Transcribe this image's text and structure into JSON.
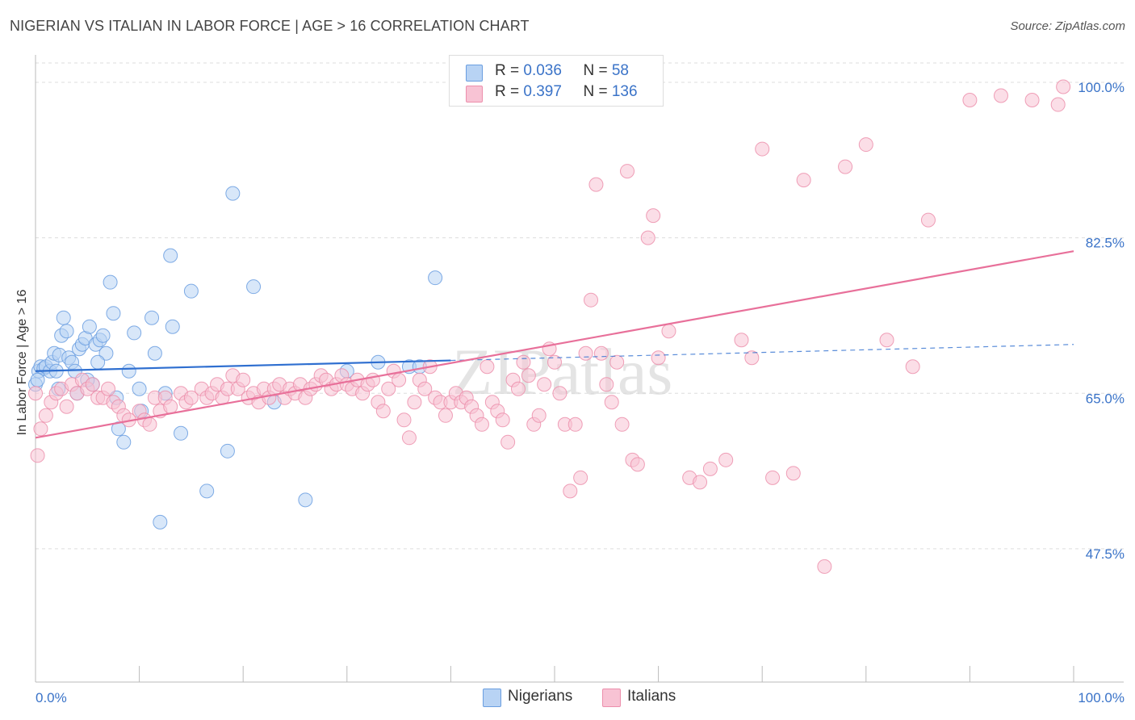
{
  "title": "NIGERIAN VS ITALIAN IN LABOR FORCE | AGE > 16 CORRELATION CHART",
  "source": "Source: ZipAtlas.com",
  "watermark": "ZIPatlas",
  "colors": {
    "nigerian_fill": "#b8d3f4",
    "nigerian_stroke": "#6a9ee0",
    "nigerian_line": "#2f6fd0",
    "italian_fill": "#f8c3d4",
    "italian_stroke": "#ec8fac",
    "italian_line": "#e8709a",
    "axis_text": "#3a73c8",
    "grid": "#dddddd"
  },
  "stats": {
    "nigerians": {
      "r_label": "R = ",
      "r_value": "0.036",
      "n_label": "N = ",
      "n_value": "58"
    },
    "italians": {
      "r_label": "R = ",
      "r_value": "0.397",
      "n_label": "N = ",
      "n_value": "136"
    }
  },
  "legend": {
    "nigerians": "Nigerians",
    "italians": "Italians"
  },
  "chart_data": {
    "type": "scatter",
    "title": "NIGERIAN VS ITALIAN IN LABOR FORCE | AGE > 16 CORRELATION CHART",
    "xlabel": "",
    "ylabel": "In Labor Force | Age > 16",
    "xlim": [
      0,
      100
    ],
    "ylim": [
      32.5,
      102
    ],
    "x_tick_labels": [
      "0.0%",
      "100.0%"
    ],
    "y_ticks": [
      {
        "value": 100.0,
        "label": "100.0%"
      },
      {
        "value": 82.5,
        "label": "82.5%"
      },
      {
        "value": 65.0,
        "label": "65.0%"
      },
      {
        "value": 47.5,
        "label": "47.5%"
      }
    ],
    "series": [
      {
        "name": "Nigerians",
        "trend": {
          "x": [
            0,
            40
          ],
          "y": [
            67.5,
            68.7
          ],
          "dashed_extension_to": [
            100,
            70.5
          ]
        },
        "points": [
          [
            0.0,
            66.0
          ],
          [
            0.3,
            67.5
          ],
          [
            0.5,
            68.0
          ],
          [
            0.8,
            67.8
          ],
          [
            1.0,
            68.0
          ],
          [
            1.4,
            67.5
          ],
          [
            1.6,
            68.5
          ],
          [
            1.8,
            69.5
          ],
          [
            2.0,
            67.5
          ],
          [
            2.3,
            69.3
          ],
          [
            2.5,
            71.5
          ],
          [
            2.7,
            73.5
          ],
          [
            3.0,
            72.0
          ],
          [
            3.2,
            69.0
          ],
          [
            3.5,
            68.5
          ],
          [
            3.8,
            67.5
          ],
          [
            4.2,
            70.0
          ],
          [
            4.5,
            70.5
          ],
          [
            4.8,
            71.2
          ],
          [
            5.2,
            72.5
          ],
          [
            5.5,
            66.0
          ],
          [
            5.8,
            70.5
          ],
          [
            6.2,
            71.0
          ],
          [
            6.5,
            71.5
          ],
          [
            6.8,
            69.5
          ],
          [
            7.2,
            77.5
          ],
          [
            7.5,
            74.0
          ],
          [
            7.8,
            64.5
          ],
          [
            8.0,
            61.0
          ],
          [
            8.5,
            59.5
          ],
          [
            9.5,
            71.8
          ],
          [
            10.0,
            65.5
          ],
          [
            10.2,
            63.0
          ],
          [
            11.2,
            73.5
          ],
          [
            11.5,
            69.5
          ],
          [
            12.0,
            50.5
          ],
          [
            12.5,
            65.0
          ],
          [
            13.0,
            80.5
          ],
          [
            13.2,
            72.5
          ],
          [
            14.0,
            60.5
          ],
          [
            15.0,
            76.5
          ],
          [
            16.5,
            54.0
          ],
          [
            18.5,
            58.5
          ],
          [
            19.0,
            87.5
          ],
          [
            21.0,
            77.0
          ],
          [
            23.0,
            64.0
          ],
          [
            26.0,
            53.0
          ],
          [
            30.0,
            67.5
          ],
          [
            33.0,
            68.5
          ],
          [
            36.0,
            68.0
          ],
          [
            37.0,
            68.0
          ],
          [
            38.5,
            78.0
          ],
          [
            0.2,
            66.5
          ],
          [
            2.2,
            65.5
          ],
          [
            4.0,
            65.0
          ],
          [
            5.0,
            66.5
          ],
          [
            6.0,
            68.5
          ],
          [
            9.0,
            67.5
          ]
        ]
      },
      {
        "name": "Italians",
        "trend": {
          "x": [
            0,
            100
          ],
          "y": [
            60.0,
            81.0
          ]
        },
        "points": [
          [
            0.0,
            65.0
          ],
          [
            0.2,
            58.0
          ],
          [
            0.5,
            61.0
          ],
          [
            1.0,
            62.5
          ],
          [
            1.5,
            64.0
          ],
          [
            2.0,
            65.0
          ],
          [
            2.5,
            65.5
          ],
          [
            3.0,
            63.5
          ],
          [
            3.5,
            66.0
          ],
          [
            4.0,
            65.0
          ],
          [
            4.5,
            66.5
          ],
          [
            5.0,
            65.5
          ],
          [
            5.5,
            66.0
          ],
          [
            6.0,
            64.5
          ],
          [
            6.5,
            64.5
          ],
          [
            7.0,
            65.5
          ],
          [
            7.5,
            64.0
          ],
          [
            8.0,
            63.5
          ],
          [
            8.5,
            62.5
          ],
          [
            9.0,
            62.0
          ],
          [
            10.0,
            63.0
          ],
          [
            10.5,
            62.0
          ],
          [
            11.0,
            61.5
          ],
          [
            11.5,
            64.5
          ],
          [
            12.0,
            63.0
          ],
          [
            12.5,
            64.5
          ],
          [
            13.0,
            63.5
          ],
          [
            14.0,
            65.0
          ],
          [
            14.5,
            64.0
          ],
          [
            15.0,
            64.5
          ],
          [
            16.0,
            65.5
          ],
          [
            16.5,
            64.5
          ],
          [
            17.0,
            65.0
          ],
          [
            17.5,
            66.0
          ],
          [
            18.0,
            64.5
          ],
          [
            18.5,
            65.5
          ],
          [
            19.0,
            67.0
          ],
          [
            19.5,
            65.5
          ],
          [
            20.0,
            66.5
          ],
          [
            20.5,
            64.5
          ],
          [
            21.0,
            65.0
          ],
          [
            21.5,
            64.0
          ],
          [
            22.0,
            65.5
          ],
          [
            22.5,
            64.5
          ],
          [
            23.0,
            65.5
          ],
          [
            23.5,
            66.0
          ],
          [
            24.0,
            64.5
          ],
          [
            24.5,
            65.5
          ],
          [
            25.0,
            65.0
          ],
          [
            25.5,
            66.0
          ],
          [
            26.0,
            64.5
          ],
          [
            26.5,
            65.5
          ],
          [
            27.0,
            66.0
          ],
          [
            27.5,
            67.0
          ],
          [
            28.0,
            66.5
          ],
          [
            28.5,
            65.5
          ],
          [
            29.0,
            66.0
          ],
          [
            29.5,
            67.0
          ],
          [
            30.0,
            66.0
          ],
          [
            30.5,
            65.5
          ],
          [
            31.0,
            66.5
          ],
          [
            31.5,
            65.0
          ],
          [
            32.0,
            66.0
          ],
          [
            32.5,
            66.5
          ],
          [
            33.0,
            64.0
          ],
          [
            33.5,
            63.0
          ],
          [
            34.0,
            65.5
          ],
          [
            34.5,
            67.5
          ],
          [
            35.0,
            66.5
          ],
          [
            35.5,
            62.0
          ],
          [
            36.0,
            60.0
          ],
          [
            36.5,
            64.0
          ],
          [
            37.0,
            66.5
          ],
          [
            37.5,
            65.5
          ],
          [
            38.0,
            68.0
          ],
          [
            38.5,
            64.5
          ],
          [
            39.0,
            64.0
          ],
          [
            39.5,
            62.5
          ],
          [
            40.0,
            64.0
          ],
          [
            40.5,
            65.0
          ],
          [
            41.0,
            64.0
          ],
          [
            41.5,
            64.5
          ],
          [
            42.0,
            63.5
          ],
          [
            42.5,
            62.5
          ],
          [
            43.0,
            61.5
          ],
          [
            43.5,
            68.0
          ],
          [
            44.0,
            64.0
          ],
          [
            44.5,
            63.0
          ],
          [
            45.0,
            62.0
          ],
          [
            45.5,
            59.5
          ],
          [
            46.0,
            66.5
          ],
          [
            46.5,
            65.5
          ],
          [
            47.0,
            68.5
          ],
          [
            47.5,
            67.0
          ],
          [
            48.0,
            61.5
          ],
          [
            48.5,
            62.5
          ],
          [
            49.0,
            66.0
          ],
          [
            49.5,
            70.0
          ],
          [
            50.0,
            68.5
          ],
          [
            50.5,
            65.0
          ],
          [
            51.0,
            61.5
          ],
          [
            51.5,
            54.0
          ],
          [
            52.0,
            61.5
          ],
          [
            52.5,
            55.5
          ],
          [
            53.0,
            69.5
          ],
          [
            53.5,
            75.5
          ],
          [
            54.0,
            88.5
          ],
          [
            54.5,
            69.5
          ],
          [
            55.0,
            66.0
          ],
          [
            55.5,
            64.0
          ],
          [
            56.0,
            68.5
          ],
          [
            56.5,
            61.5
          ],
          [
            57.0,
            90.0
          ],
          [
            57.5,
            57.5
          ],
          [
            58.0,
            57.0
          ],
          [
            59.0,
            82.5
          ],
          [
            59.5,
            85.0
          ],
          [
            60.0,
            69.0
          ],
          [
            61.0,
            72.0
          ],
          [
            63.0,
            55.5
          ],
          [
            64.0,
            55.0
          ],
          [
            65.0,
            56.5
          ],
          [
            66.5,
            57.5
          ],
          [
            68.0,
            71.0
          ],
          [
            69.0,
            69.0
          ],
          [
            70.0,
            92.5
          ],
          [
            71.0,
            55.5
          ],
          [
            73.0,
            56.0
          ],
          [
            74.0,
            89.0
          ],
          [
            76.0,
            45.5
          ],
          [
            78.0,
            90.5
          ],
          [
            80.0,
            93.0
          ],
          [
            82.0,
            71.0
          ],
          [
            84.5,
            68.0
          ],
          [
            86.0,
            84.5
          ],
          [
            90.0,
            98.0
          ],
          [
            93.0,
            98.5
          ],
          [
            96.0,
            98.0
          ],
          [
            98.5,
            97.5
          ],
          [
            99.0,
            99.5
          ]
        ]
      }
    ],
    "stats": [
      {
        "series": "Nigerians",
        "r": 0.036,
        "n": 58
      },
      {
        "series": "Italians",
        "r": 0.397,
        "n": 136
      }
    ]
  }
}
